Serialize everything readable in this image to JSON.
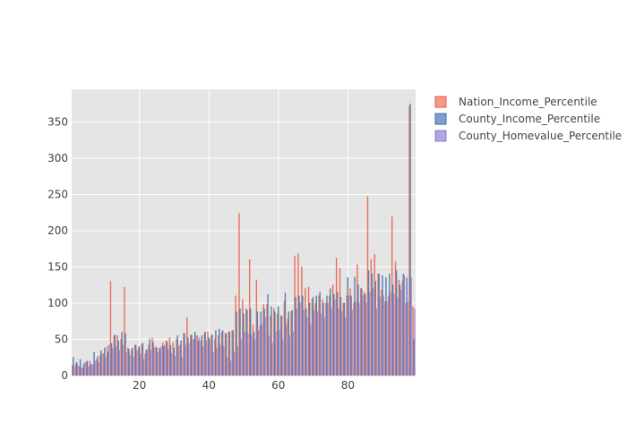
{
  "chart_data": {
    "type": "bar",
    "title": "",
    "xlabel": "",
    "ylabel": "",
    "xlim": [
      0.5,
      99.5
    ],
    "ylim": [
      0,
      395
    ],
    "x_ticks": [
      20,
      40,
      60,
      80
    ],
    "y_ticks": [
      0,
      50,
      100,
      150,
      200,
      250,
      300,
      350
    ],
    "grid": true,
    "legend_position": "top-right",
    "x": [
      1,
      2,
      3,
      4,
      5,
      6,
      7,
      8,
      9,
      10,
      11,
      12,
      13,
      14,
      15,
      16,
      17,
      18,
      19,
      20,
      21,
      22,
      23,
      24,
      25,
      26,
      27,
      28,
      29,
      30,
      31,
      32,
      33,
      34,
      35,
      36,
      37,
      38,
      39,
      40,
      41,
      42,
      43,
      44,
      45,
      46,
      47,
      48,
      49,
      50,
      51,
      52,
      53,
      54,
      55,
      56,
      57,
      58,
      59,
      60,
      61,
      62,
      63,
      64,
      65,
      66,
      67,
      68,
      69,
      70,
      71,
      72,
      73,
      74,
      75,
      76,
      77,
      78,
      79,
      80,
      81,
      82,
      83,
      84,
      85,
      86,
      87,
      88,
      89,
      90,
      91,
      92,
      93,
      94,
      95,
      96,
      97,
      98,
      99
    ],
    "series": [
      {
        "name": "Nation_Income_Percentile",
        "color": "#e45a3c",
        "fill": "#f29a85",
        "values": [
          14,
          16,
          12,
          10,
          18,
          20,
          15,
          22,
          28,
          30,
          40,
          130,
          55,
          55,
          50,
          122,
          38,
          35,
          42,
          38,
          44,
          30,
          42,
          52,
          40,
          38,
          45,
          48,
          52,
          45,
          50,
          42,
          58,
          80,
          55,
          50,
          55,
          48,
          58,
          60,
          55,
          50,
          55,
          60,
          58,
          60,
          62,
          110,
          224,
          105,
          92,
          160,
          70,
          132,
          68,
          98,
          98,
          82,
          92,
          85,
          82,
          102,
          78,
          88,
          165,
          168,
          150,
          120,
          122,
          105,
          100,
          110,
          105,
          100,
          110,
          125,
          162,
          148,
          100,
          110,
          120,
          100,
          153,
          120,
          115,
          247,
          160,
          167,
          140,
          118,
          102,
          110,
          219,
          157,
          132,
          130,
          100,
          372,
          95
        ]
      },
      {
        "name": "County_Income_Percentile",
        "color": "#3d6ea8",
        "fill": "#7e9fca",
        "values": [
          25,
          18,
          22,
          15,
          20,
          14,
          32,
          26,
          34,
          38,
          32,
          44,
          56,
          48,
          60,
          58,
          36,
          38,
          42,
          40,
          44,
          35,
          50,
          46,
          38,
          36,
          40,
          46,
          42,
          38,
          55,
          48,
          58,
          52,
          56,
          60,
          48,
          55,
          60,
          52,
          56,
          62,
          64,
          62,
          58,
          60,
          62,
          88,
          92,
          85,
          90,
          92,
          60,
          88,
          88,
          92,
          112,
          95,
          88,
          95,
          82,
          114,
          88,
          90,
          108,
          110,
          110,
          92,
          100,
          108,
          110,
          115,
          100,
          110,
          120,
          112,
          115,
          108,
          100,
          135,
          110,
          136,
          125,
          120,
          112,
          145,
          140,
          130,
          140,
          138,
          135,
          140,
          125,
          145,
          125,
          140,
          135,
          375,
          50
        ]
      },
      {
        "name": "County_Homevalue_Percentile",
        "color": "#8a7cd0",
        "fill": "#b0a5e6",
        "values": [
          12,
          14,
          10,
          18,
          12,
          16,
          20,
          18,
          30,
          25,
          42,
          38,
          40,
          35,
          42,
          32,
          28,
          26,
          34,
          30,
          22,
          36,
          35,
          38,
          32,
          40,
          42,
          36,
          30,
          26,
          40,
          24,
          42,
          44,
          50,
          55,
          52,
          40,
          48,
          50,
          32,
          38,
          42,
          40,
          25,
          20,
          32,
          40,
          50,
          60,
          58,
          55,
          50,
          62,
          70,
          80,
          55,
          45,
          60,
          62,
          50,
          70,
          55,
          60,
          92,
          100,
          90,
          80,
          70,
          90,
          88,
          85,
          80,
          100,
          92,
          105,
          92,
          88,
          80,
          110,
          90,
          102,
          100,
          110,
          100,
          115,
          120,
          92,
          108,
          110,
          102,
          115,
          112,
          108,
          118,
          138,
          102,
          135,
          92
        ]
      }
    ]
  }
}
